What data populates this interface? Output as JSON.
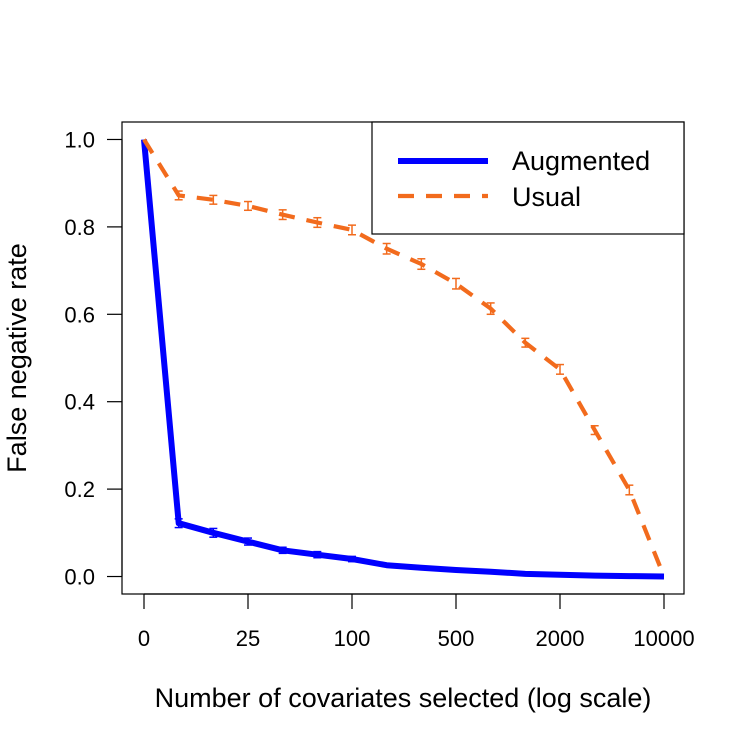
{
  "chart_data": {
    "type": "line",
    "title": "",
    "xlabel": "Number of covariates selected (log scale)",
    "ylabel": "False negative rate",
    "x_scale": "log",
    "x_tick_labels": [
      "0",
      "25",
      "100",
      "500",
      "2000",
      "10000"
    ],
    "y_tick_labels": [
      "0.0",
      "0.2",
      "0.4",
      "0.6",
      "0.8",
      "1.0"
    ],
    "y_ticks": [
      0,
      0.2,
      0.4,
      0.6,
      0.8,
      1.0
    ],
    "ylim": [
      -0.04,
      1.04
    ],
    "grid": false,
    "legend_position": "top-right",
    "series": [
      {
        "name": "Augmented",
        "color": "#0000ff",
        "style": "solid",
        "values": [
          1.0,
          0.122,
          0.1,
          0.08,
          0.06,
          0.05,
          0.04,
          0.026,
          0.02,
          0.015,
          0.011,
          0.006,
          0.004,
          0.002,
          0.001,
          0.0
        ],
        "errors": [
          0,
          0.01,
          0.01,
          0.008,
          0.007,
          0.007,
          0.006,
          0,
          0,
          0,
          0,
          0,
          0,
          0,
          0,
          0
        ]
      },
      {
        "name": "Usual",
        "color": "#f26b1d",
        "style": "dashed",
        "values": [
          1.0,
          0.872,
          0.862,
          0.848,
          0.828,
          0.81,
          0.793,
          0.75,
          0.715,
          0.67,
          0.613,
          0.535,
          0.474,
          0.335,
          0.198,
          0.0
        ],
        "errors": [
          0,
          0.01,
          0.01,
          0.01,
          0.011,
          0.011,
          0.011,
          0.012,
          0.012,
          0.012,
          0.013,
          0.01,
          0.011,
          0.01,
          0.011,
          0
        ]
      }
    ]
  }
}
